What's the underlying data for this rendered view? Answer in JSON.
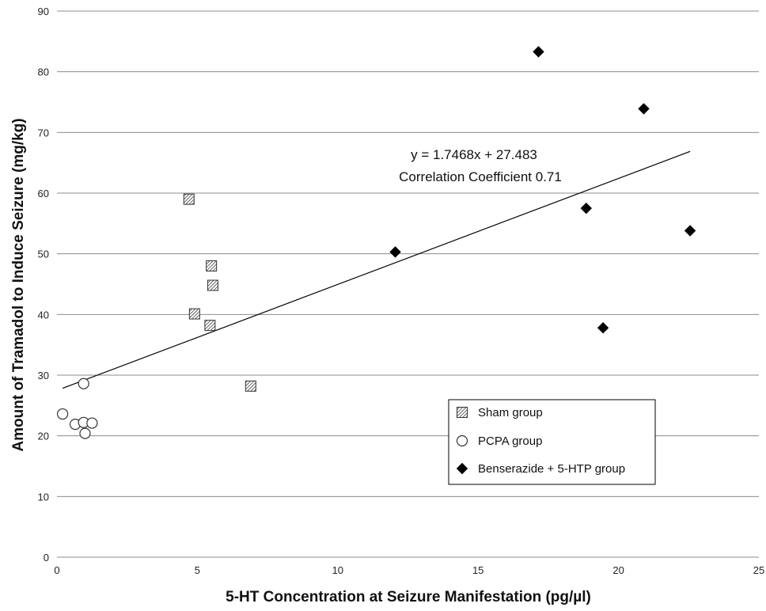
{
  "chart_data": {
    "type": "scatter",
    "xlabel": "5-HT Concentration at Seizure Manifestation (pg/µl)",
    "ylabel": "Amount of Tramadol to Induce Seizure  (mg/kg)",
    "xlim": [
      0,
      25
    ],
    "ylim": [
      0,
      90
    ],
    "xticks": [
      0,
      5,
      10,
      15,
      20,
      25
    ],
    "yticks": [
      0,
      10,
      20,
      30,
      40,
      50,
      60,
      70,
      80,
      90
    ],
    "horizontal_gridlines": true,
    "legend_position": "lower-right",
    "series": [
      {
        "name": "Sham group",
        "marker": "hatched-square",
        "points": [
          {
            "x": 4.7,
            "y": 59.0
          },
          {
            "x": 5.5,
            "y": 48.0
          },
          {
            "x": 5.55,
            "y": 44.8
          },
          {
            "x": 4.9,
            "y": 40.1
          },
          {
            "x": 5.45,
            "y": 38.2
          },
          {
            "x": 6.9,
            "y": 28.2
          }
        ]
      },
      {
        "name": "PCPA group",
        "marker": "open-circle",
        "points": [
          {
            "x": 0.2,
            "y": 23.6
          },
          {
            "x": 0.65,
            "y": 21.9
          },
          {
            "x": 0.95,
            "y": 22.2
          },
          {
            "x": 1.25,
            "y": 22.1
          },
          {
            "x": 1.0,
            "y": 20.4
          },
          {
            "x": 0.95,
            "y": 28.6
          }
        ]
      },
      {
        "name": "Benserazide + 5-HTP group",
        "marker": "filled-diamond",
        "points": [
          {
            "x": 17.15,
            "y": 83.3
          },
          {
            "x": 20.9,
            "y": 73.9
          },
          {
            "x": 18.85,
            "y": 57.5
          },
          {
            "x": 22.55,
            "y": 53.8
          },
          {
            "x": 12.05,
            "y": 50.3
          },
          {
            "x": 19.45,
            "y": 37.8
          }
        ]
      }
    ],
    "trendline": {
      "slope": 1.7468,
      "intercept": 27.483,
      "x_start": 0.2,
      "x_end": 22.55
    },
    "annotations": [
      "y = 1.7468x + 27.483",
      "Correlation Coefficient 0.71"
    ]
  }
}
